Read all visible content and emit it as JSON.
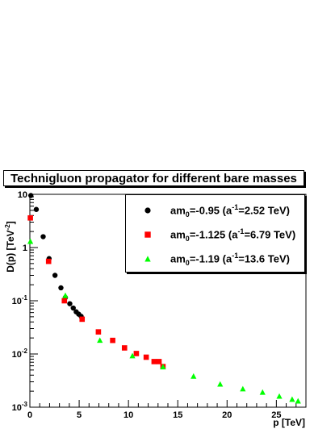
{
  "chart_data": {
    "type": "scatter",
    "title": "Technigluon propagator for different bare masses",
    "xlabel": "p [TeV]",
    "ylabel_main": "D(p) [TeV",
    "ylabel_exp": "-2",
    "ylabel_close": "]",
    "xlim": [
      0,
      28
    ],
    "ylim": [
      0.001,
      10
    ],
    "yscale": "log",
    "x_ticks": [
      "0",
      "5",
      "10",
      "15",
      "20",
      "25"
    ],
    "y_ticks": [
      {
        "base": "10",
        "exp": "-3"
      },
      {
        "base": "10",
        "exp": "-2"
      },
      {
        "base": "10",
        "exp": "-1"
      },
      {
        "base": "1",
        "exp": ""
      },
      {
        "base": "10",
        "exp": ""
      }
    ],
    "legend_position": "top-right",
    "series": [
      {
        "name": "am0=-0.95 (a-1=2.52 TeV)",
        "legend": {
          "pre": "am",
          "sub": "0",
          "mid": "=-0.95 (a",
          "sup": "-1",
          "post": "=2.52 TeV)"
        },
        "marker": "circle",
        "color": "#000000",
        "points": [
          [
            0.1,
            9.5
          ],
          [
            0.65,
            5.2
          ],
          [
            1.35,
            1.6
          ],
          [
            1.95,
            0.62
          ],
          [
            2.55,
            0.3
          ],
          [
            3.15,
            0.175
          ],
          [
            3.6,
            0.115
          ],
          [
            4.05,
            0.088
          ],
          [
            4.4,
            0.073
          ],
          [
            4.7,
            0.062
          ],
          [
            4.95,
            0.056
          ],
          [
            5.2,
            0.051
          ]
        ]
      },
      {
        "name": "am0=-1.125 (a-1=6.79 TeV)",
        "legend": {
          "pre": "am",
          "sub": "0",
          "mid": "=-1.125 (a",
          "sup": "-1",
          "post": "=6.79 TeV)"
        },
        "marker": "square",
        "color": "#ff0000",
        "points": [
          [
            0.05,
            3.6
          ],
          [
            1.9,
            0.55
          ],
          [
            3.5,
            0.1
          ],
          [
            5.3,
            0.045
          ],
          [
            6.95,
            0.026
          ],
          [
            8.4,
            0.018
          ],
          [
            9.6,
            0.013
          ],
          [
            10.8,
            0.0102
          ],
          [
            11.8,
            0.0087
          ],
          [
            12.6,
            0.0072
          ],
          [
            13.1,
            0.0072
          ],
          [
            13.5,
            0.0058
          ]
        ]
      },
      {
        "name": "am0=-1.19 (a-1=13.6 TeV)",
        "legend": {
          "pre": "am",
          "sub": "0",
          "mid": "=-1.19 (a",
          "sup": "-1",
          "post": "=13.6 TeV)"
        },
        "marker": "triangle",
        "color": "#00ff00",
        "points": [
          [
            0.05,
            1.3
          ],
          [
            3.6,
            0.125
          ],
          [
            7.1,
            0.018
          ],
          [
            10.4,
            0.0092
          ],
          [
            13.5,
            0.0057
          ],
          [
            16.6,
            0.0038
          ],
          [
            19.3,
            0.0027
          ],
          [
            21.6,
            0.0022
          ],
          [
            23.6,
            0.0019
          ],
          [
            25.3,
            0.0016
          ],
          [
            26.6,
            0.0014
          ],
          [
            27.2,
            0.0013
          ]
        ]
      }
    ]
  }
}
